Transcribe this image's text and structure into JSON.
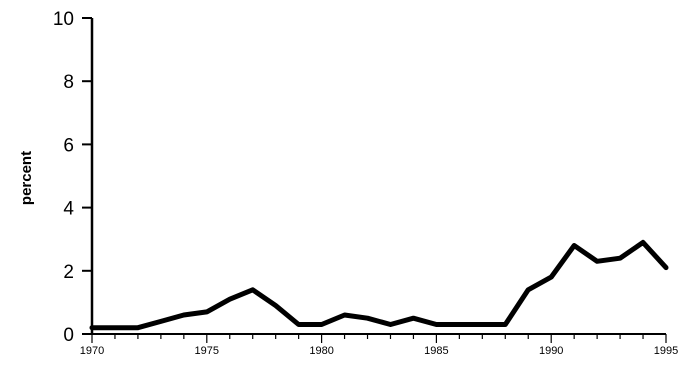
{
  "chart_data": {
    "type": "line",
    "title": "",
    "xlabel": "",
    "ylabel": "percent",
    "xlim": [
      1970,
      1995
    ],
    "ylim": [
      0,
      10
    ],
    "grid": false,
    "x_ticks": [
      "1970",
      "1975",
      "1980",
      "1985",
      "1990",
      "1995"
    ],
    "y_ticks": [
      "0",
      "2",
      "4",
      "6",
      "8",
      "10"
    ],
    "line_color": "#000000",
    "series": [
      {
        "x": [
          1970,
          1971,
          1972,
          1973,
          1974,
          1975,
          1976,
          1977,
          1978,
          1979,
          1980,
          1981,
          1982,
          1983,
          1984,
          1985,
          1986,
          1987,
          1988,
          1989,
          1990,
          1991,
          1992,
          1993,
          1994,
          1995
        ],
        "values": [
          0.2,
          0.2,
          0.2,
          0.4,
          0.6,
          0.7,
          1.1,
          1.4,
          0.9,
          0.3,
          0.3,
          0.6,
          0.5,
          0.3,
          0.5,
          0.3,
          0.3,
          0.3,
          0.3,
          1.4,
          1.8,
          2.8,
          2.3,
          2.4,
          2.9,
          2.1
        ]
      }
    ]
  }
}
